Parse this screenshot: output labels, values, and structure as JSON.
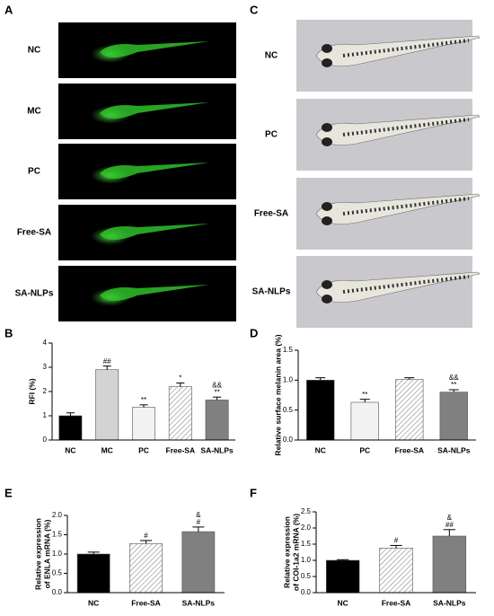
{
  "image_panels": [
    {
      "panel": "A",
      "rows": [
        "NC",
        "MC",
        "PC",
        "Free-SA",
        "SA-NLPs"
      ]
    },
    {
      "panel": "C",
      "rows": [
        "NC",
        "PC",
        "Free-SA",
        "SA-NLPs"
      ]
    }
  ],
  "chart_data": [
    {
      "type": "bar",
      "panel": "B",
      "ylabel": [
        "RFI (%)"
      ],
      "categories": [
        "NC",
        "MC",
        "PC",
        "Free-SA",
        "SA-NLPs"
      ],
      "values": [
        1.0,
        2.9,
        1.35,
        2.2,
        1.65
      ],
      "errors": [
        0.12,
        0.15,
        0.1,
        0.15,
        0.12
      ],
      "annotations": [
        null,
        [
          "##"
        ],
        [
          "**"
        ],
        [
          "*"
        ],
        [
          "&&",
          "**"
        ]
      ],
      "colors": [
        "#000000",
        "#d3d3d3",
        "#f2f2f2",
        "#ffffff",
        "#808080"
      ],
      "hatched": [
        false,
        false,
        false,
        true,
        false
      ],
      "ylim": [
        0,
        4
      ],
      "yticks": [
        0,
        1,
        2,
        3,
        4
      ]
    },
    {
      "type": "bar",
      "panel": "D",
      "ylabel": [
        "Relative surface melanin area (%)"
      ],
      "categories": [
        "NC",
        "PC",
        "Free-SA",
        "SA-NLPs"
      ],
      "values": [
        1.0,
        0.63,
        1.01,
        0.8
      ],
      "errors": [
        0.04,
        0.05,
        0.03,
        0.04
      ],
      "annotations": [
        null,
        [
          "**"
        ],
        null,
        [
          "&&",
          "**"
        ]
      ],
      "colors": [
        "#000000",
        "#f2f2f2",
        "#ffffff",
        "#808080"
      ],
      "hatched": [
        false,
        false,
        true,
        false
      ],
      "ylim": [
        0,
        1.5
      ],
      "yticks": [
        {
          "value": 0,
          "label": "0.0"
        },
        0.5,
        {
          "value": 1,
          "label": "1.0"
        },
        1.5
      ]
    },
    {
      "type": "bar",
      "panel": "E",
      "ylabel": [
        "Relative expression",
        "of ENLA mRNA (%)"
      ],
      "categories": [
        "NC",
        "Free-SA",
        "SA-NLPs"
      ],
      "values": [
        1.0,
        1.27,
        1.58
      ],
      "errors": [
        0.05,
        0.08,
        0.12
      ],
      "annotations": [
        null,
        [
          "#"
        ],
        [
          "&",
          "#"
        ]
      ],
      "colors": [
        "#000000",
        "#ffffff",
        "#808080"
      ],
      "hatched": [
        false,
        true,
        false
      ],
      "ylim": [
        0,
        2
      ],
      "yticks": [
        {
          "value": 0,
          "label": "0.0"
        },
        0.5,
        {
          "value": 1,
          "label": "1.0"
        },
        1.5,
        {
          "value": 2,
          "label": "2.0"
        }
      ]
    },
    {
      "type": "bar",
      "panel": "F",
      "ylabel": [
        "Relative expression",
        "of COI-1a2 mRNA (%)"
      ],
      "categories": [
        "NC",
        "Free-SA",
        "SA-NLPs"
      ],
      "values": [
        1.0,
        1.38,
        1.75
      ],
      "errors": [
        0.02,
        0.08,
        0.2
      ],
      "annotations": [
        null,
        [
          "#"
        ],
        [
          "&",
          "##"
        ]
      ],
      "colors": [
        "#000000",
        "#ffffff",
        "#808080"
      ],
      "hatched": [
        false,
        true,
        false
      ],
      "ylim": [
        0,
        2.5
      ],
      "yticks": [
        {
          "value": 0,
          "label": "0.0"
        },
        0.5,
        {
          "value": 1,
          "label": "1.0"
        },
        1.5,
        {
          "value": 2,
          "label": "2.0"
        },
        2.5
      ]
    }
  ]
}
